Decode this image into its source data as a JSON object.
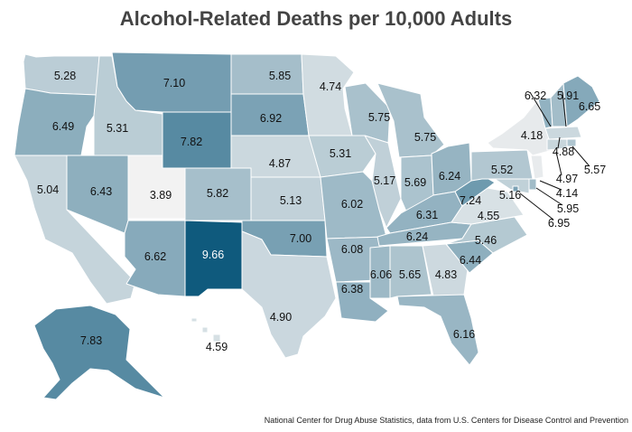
{
  "title": "Alcohol-Related Deaths per 10,000 Adults",
  "source": "National Center for Drug Abuse Statistics, data from U.S. Centers for Disease Control and Prevention",
  "color_scale": {
    "low": "#f2f2f2",
    "high": "#0f5a7d",
    "min": 3.89,
    "max": 9.66
  },
  "states": [
    {
      "name": "Washington",
      "value": 5.28
    },
    {
      "name": "Oregon",
      "value": 6.49
    },
    {
      "name": "California",
      "value": 5.04
    },
    {
      "name": "Idaho",
      "value": 5.31
    },
    {
      "name": "Nevada",
      "value": 6.43
    },
    {
      "name": "Montana",
      "value": 7.1
    },
    {
      "name": "Wyoming",
      "value": 7.82
    },
    {
      "name": "Utah",
      "value": 3.89
    },
    {
      "name": "Arizona",
      "value": 6.62
    },
    {
      "name": "Colorado",
      "value": 5.82
    },
    {
      "name": "New Mexico",
      "value": 9.66
    },
    {
      "name": "North Dakota",
      "value": 5.85
    },
    {
      "name": "South Dakota",
      "value": 6.92
    },
    {
      "name": "Nebraska",
      "value": 4.87
    },
    {
      "name": "Kansas",
      "value": 5.13
    },
    {
      "name": "Oklahoma",
      "value": 7.0
    },
    {
      "name": "Texas",
      "value": 4.9
    },
    {
      "name": "Minnesota",
      "value": 4.74
    },
    {
      "name": "Iowa",
      "value": 5.31
    },
    {
      "name": "Missouri",
      "value": 6.02
    },
    {
      "name": "Arkansas",
      "value": 6.08
    },
    {
      "name": "Louisiana",
      "value": 6.38
    },
    {
      "name": "Wisconsin",
      "value": 5.75
    },
    {
      "name": "Illinois",
      "value": 5.17
    },
    {
      "name": "Michigan",
      "value": 5.75
    },
    {
      "name": "Indiana",
      "value": 5.69
    },
    {
      "name": "Ohio",
      "value": 6.24
    },
    {
      "name": "Kentucky",
      "value": 6.31
    },
    {
      "name": "Tennessee",
      "value": 6.24
    },
    {
      "name": "Mississippi",
      "value": 6.06
    },
    {
      "name": "Alabama",
      "value": 5.65
    },
    {
      "name": "Georgia",
      "value": 4.83
    },
    {
      "name": "Florida",
      "value": 6.16
    },
    {
      "name": "South Carolina",
      "value": 6.44
    },
    {
      "name": "North Carolina",
      "value": 5.46
    },
    {
      "name": "Virginia",
      "value": 4.55
    },
    {
      "name": "West Virginia",
      "value": 7.24
    },
    {
      "name": "Pennsylvania",
      "value": 5.52
    },
    {
      "name": "New York",
      "value": 4.18
    },
    {
      "name": "Vermont",
      "value": 6.32
    },
    {
      "name": "New Hampshire",
      "value": 5.91
    },
    {
      "name": "Maine",
      "value": 6.65
    },
    {
      "name": "Massachusetts",
      "value": 4.88
    },
    {
      "name": "Rhode Island",
      "value": 5.57
    },
    {
      "name": "Connecticut",
      "value": 4.97
    },
    {
      "name": "New Jersey",
      "value": 4.14
    },
    {
      "name": "Delaware",
      "value": 5.95
    },
    {
      "name": "Maryland",
      "value": 5.16
    },
    {
      "name": "District of Columbia",
      "value": 6.95
    },
    {
      "name": "Alaska",
      "value": 7.83
    },
    {
      "name": "Hawaii",
      "value": 4.59
    }
  ]
}
